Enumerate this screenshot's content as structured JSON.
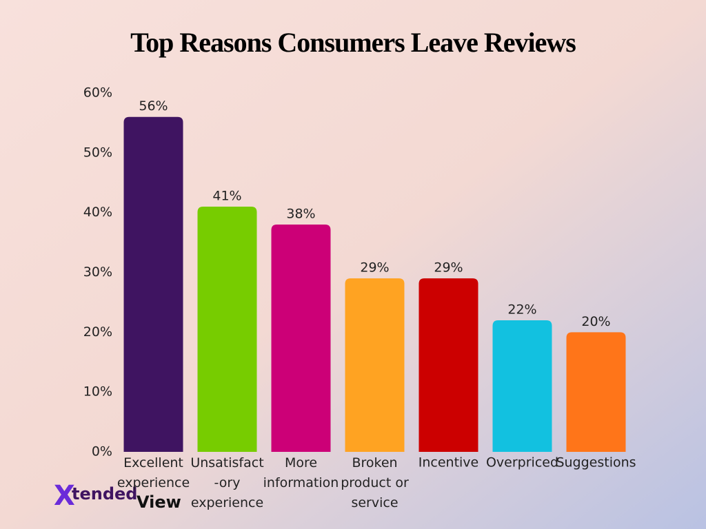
{
  "chart_data": {
    "type": "bar",
    "title": "Top Reasons Consumers Leave Reviews",
    "categories": [
      "Excellent\nexperience",
      "Unsatisfact\n-ory\nexperience",
      "More\ninformation",
      "Broken\nproduct or\nservice",
      "Incentive",
      "Overpriced",
      "Suggestions"
    ],
    "values": [
      56,
      41,
      38,
      29,
      29,
      22,
      20
    ],
    "value_labels": [
      "56%",
      "41%",
      "38%",
      "29%",
      "29%",
      "22%",
      "20%"
    ],
    "colors": [
      "#3f1461",
      "#77cc00",
      "#cc0077",
      "#ffa322",
      "#cc0000",
      "#12c1e0",
      "#ff7519"
    ],
    "ylim": [
      0,
      60
    ],
    "yticks": [
      {
        "value": 0,
        "label": "0%"
      },
      {
        "value": 10,
        "label": "10%"
      },
      {
        "value": 20,
        "label": "20%"
      },
      {
        "value": 30,
        "label": "30%"
      },
      {
        "value": 40,
        "label": "40%"
      },
      {
        "value": 50,
        "label": "50%"
      },
      {
        "value": 60,
        "label": "60%"
      }
    ],
    "grid": false,
    "brand": [
      "X",
      "tended",
      "View"
    ]
  }
}
